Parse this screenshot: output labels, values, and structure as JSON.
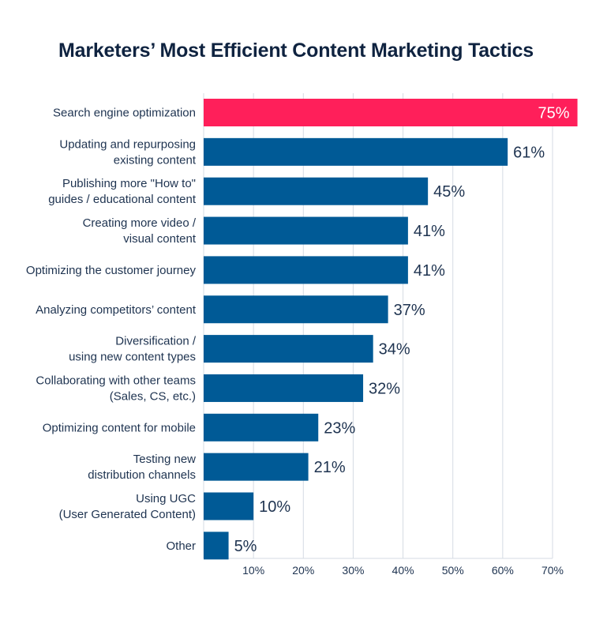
{
  "chart_data": {
    "type": "bar",
    "orientation": "horizontal",
    "title": "Marketers’ Most Efficient Content Marketing Tactics",
    "xlabel": "",
    "ylabel": "",
    "xlim": [
      0,
      70
    ],
    "grid": true,
    "x_ticks": [
      "10%",
      "20%",
      "30%",
      "40%",
      "50%",
      "60%",
      "70%"
    ],
    "x_tick_values": [
      10,
      20,
      30,
      40,
      50,
      60,
      70
    ],
    "categories": [
      [
        "Search engine optimization"
      ],
      [
        "Updating and repurposing",
        "existing content"
      ],
      [
        "Publishing more \"How to\"",
        "guides / educational content"
      ],
      [
        "Creating more video /",
        "visual content"
      ],
      [
        "Optimizing the customer journey"
      ],
      [
        "Analyzing competitors’ content"
      ],
      [
        "Diversification /",
        "using new content types"
      ],
      [
        "Collaborating with other teams",
        "(Sales, CS, etc.)"
      ],
      [
        "Optimizing content for mobile"
      ],
      [
        "Testing new",
        "distribution channels"
      ],
      [
        "Using UGC",
        "(User Generated Content)"
      ],
      [
        "Other"
      ]
    ],
    "values": [
      75,
      61,
      45,
      41,
      41,
      37,
      34,
      32,
      23,
      21,
      10,
      5
    ],
    "data_labels": [
      "75%",
      "61%",
      "45%",
      "41%",
      "41%",
      "37%",
      "34%",
      "32%",
      "23%",
      "21%",
      "10%",
      "5%"
    ],
    "colors": {
      "highlight": "#ff1f5a",
      "bar": "#005a96",
      "text": "#1e3350",
      "grid": "#d5dbe3"
    },
    "highlight_index": 0
  }
}
